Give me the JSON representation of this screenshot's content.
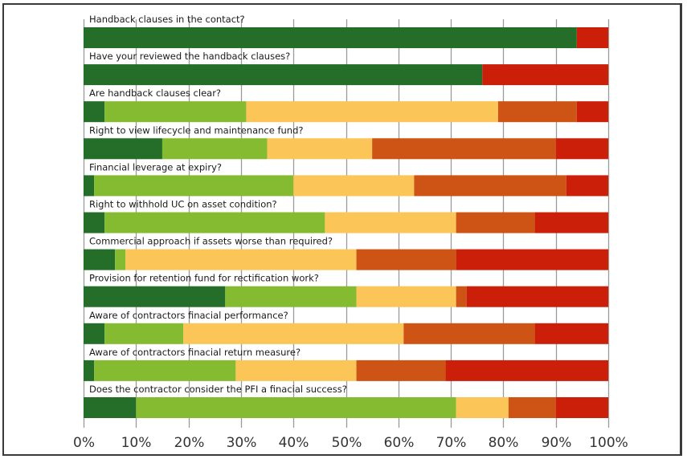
{
  "chart_data": {
    "type": "bar",
    "orientation": "horizontal",
    "stacked": true,
    "percent": true,
    "title": "",
    "xlabel": "",
    "ylabel": "",
    "xlim": [
      0,
      100
    ],
    "grid": "vertical",
    "legend": "none",
    "x_ticks": [
      "0%",
      "10%",
      "20%",
      "30%",
      "40%",
      "50%",
      "60%",
      "70%",
      "80%",
      "90%",
      "100%"
    ],
    "categories": [
      "Handback clauses in the contact?",
      "Have your reviewed  the handback clauses?",
      "Are handback clauses clear?",
      "Right to view lifecycle and maintenance fund?",
      "Financial leverage at expiry?",
      "Right to withhold UC on asset condition?",
      "Commercial approach if assets worse than required?",
      "Provision for retention fund for rectification work?",
      "Aware of contractors finacial performance?",
      "Aware of contractors finacial return measure?",
      "Does the contractor consider the PFI a finacial success?"
    ],
    "series": [
      {
        "name": "series-1",
        "color": "#246e29",
        "values": [
          94,
          76,
          4,
          15,
          2,
          4,
          6,
          27,
          4,
          2,
          10
        ]
      },
      {
        "name": "series-2",
        "color": "#84bb31",
        "values": [
          0,
          0,
          27,
          20,
          38,
          42,
          2,
          25,
          15,
          27,
          61
        ]
      },
      {
        "name": "series-3",
        "color": "#fbc558",
        "values": [
          0,
          0,
          48,
          20,
          23,
          25,
          44,
          19,
          42,
          23,
          10
        ]
      },
      {
        "name": "series-4",
        "color": "#cd5415",
        "values": [
          0,
          0,
          15,
          35,
          29,
          15,
          19,
          2,
          25,
          17,
          9
        ]
      },
      {
        "name": "series-5",
        "color": "#cc1f0a",
        "values": [
          6,
          24,
          6,
          10,
          8,
          14,
          29,
          27,
          14,
          31,
          10
        ]
      }
    ]
  }
}
